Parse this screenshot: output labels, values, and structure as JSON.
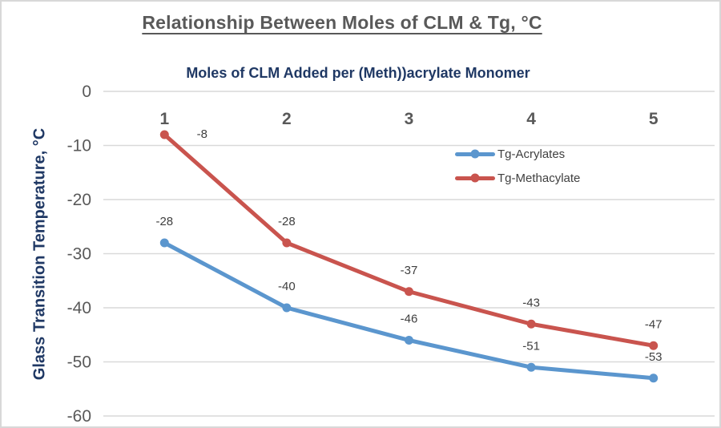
{
  "chart_data": {
    "type": "line",
    "title": "Relationship Between Moles of CLM & Tg, °C",
    "x_axis_title": "Moles of CLM Added per (Meth))acrylate Monomer",
    "y_axis_title": "Glass Transition Temperature, °C",
    "categories": [
      "1",
      "2",
      "3",
      "4",
      "5"
    ],
    "series": [
      {
        "name": "Tg-Acrylates",
        "color": "#5B96CE",
        "values": [
          -28,
          -40,
          -46,
          -51,
          -53
        ],
        "data_labels": [
          "-28",
          "-40",
          "-46",
          "-51",
          "-53"
        ],
        "label_placement": [
          "above",
          "above",
          "above",
          "above",
          "above"
        ]
      },
      {
        "name": "Tg-Methacylate",
        "color": "#C9544E",
        "values": [
          -8,
          -28,
          -37,
          -43,
          -47
        ],
        "data_labels": [
          "-8",
          "-28",
          "-37",
          "-43",
          "-47"
        ],
        "label_placement": [
          "right",
          "above",
          "above",
          "above",
          "above"
        ]
      }
    ],
    "y_ticks": [
      0,
      -10,
      -20,
      -30,
      -40,
      -50,
      -60
    ],
    "y_tick_labels": [
      "0",
      "-10",
      "-20",
      "-30",
      "-40",
      "-50",
      "-60"
    ],
    "ylim": [
      -60,
      0
    ],
    "grid": "horizontal-only",
    "legend_position": "inside-top-right",
    "colors": {
      "title": "#595959",
      "axis_titles": "#1F3864",
      "tick_labels": "#595959",
      "data_labels": "#3F3F3F",
      "gridline": "#D9D9D9",
      "acrylates_blue": "#5B96CE",
      "methacylate_red": "#C9544E"
    }
  }
}
